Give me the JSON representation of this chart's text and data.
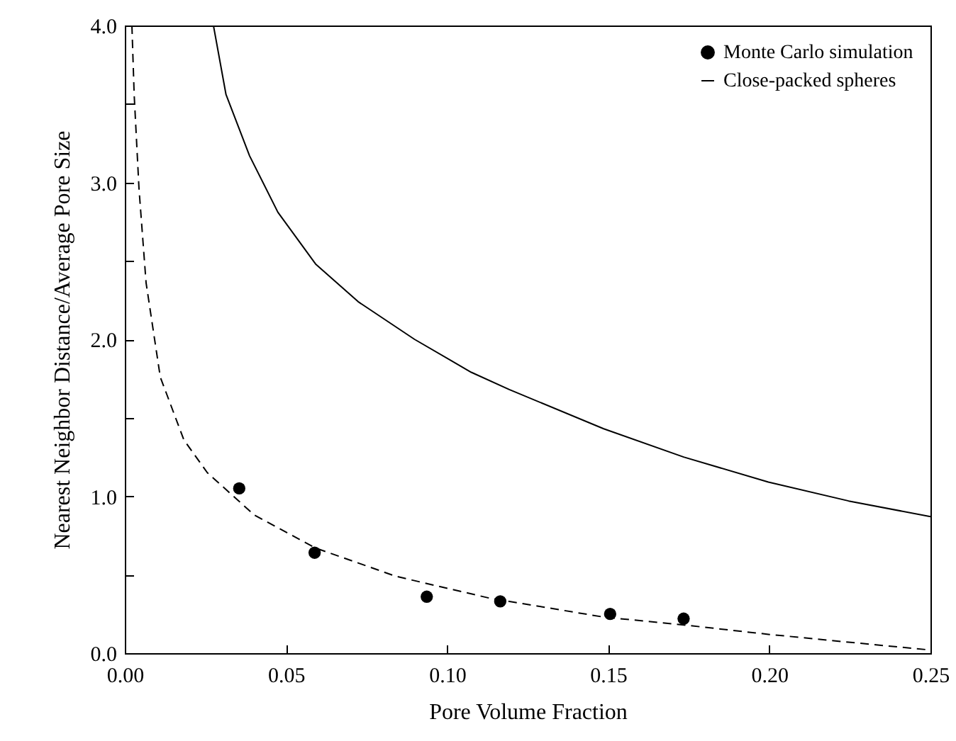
{
  "chart_data": {
    "type": "scatter",
    "xlabel": "Pore Volume Fraction",
    "ylabel": "Nearest Neighbor Distance/Average Pore Size",
    "xlim": [
      0,
      0.25
    ],
    "ylim": [
      0,
      4
    ],
    "xticks": [
      {
        "value": 0,
        "label": "0.00"
      },
      {
        "value": 0.05,
        "label": "0.05"
      },
      {
        "value": 0.1,
        "label": "0.10"
      },
      {
        "value": 0.15,
        "label": "0.15"
      },
      {
        "value": 0.2,
        "label": "0.20"
      },
      {
        "value": 0.25,
        "label": "0.25"
      }
    ],
    "yticks": [
      {
        "value": 0,
        "label": "0.0"
      },
      {
        "value": 0.5,
        "label": null
      },
      {
        "value": 1,
        "label": "1.0"
      },
      {
        "value": 1.5,
        "label": null
      },
      {
        "value": 2,
        "label": "2.0"
      },
      {
        "value": 2.5,
        "label": null
      },
      {
        "value": 3,
        "label": "3.0"
      },
      {
        "value": 3.5,
        "label": null
      },
      {
        "value": 4,
        "label": "4.0"
      }
    ],
    "legend": "top right",
    "grid": false,
    "series": [
      {
        "name": "Monte Carlo simulation",
        "marker": "circle",
        "color": "#000000",
        "x": [
          0.0355,
          0.0589,
          0.0937,
          0.1165,
          0.1506,
          0.1734
        ],
        "values": [
          1.05,
          0.64,
          0.36,
          0.33,
          0.25,
          0.22
        ]
      },
      {
        "name": "Close-packed spheres",
        "type": "line",
        "line_style": "solid",
        "color": "#000000",
        "x": [
          0.0275,
          0.0314,
          0.0387,
          0.0475,
          0.0592,
          0.0724,
          0.0899,
          0.1075,
          0.1193,
          0.1486,
          0.1734,
          0.1997,
          0.2246,
          0.25
        ],
        "values": [
          4.0,
          3.56,
          3.17,
          2.81,
          2.48,
          2.24,
          2.0,
          1.79,
          1.68,
          1.43,
          1.25,
          1.09,
          0.97,
          0.87
        ]
      },
      {
        "type": "line",
        "line_style": "dashed",
        "color": "#000000",
        "x": [
          0.0022,
          0.0029,
          0.0044,
          0.0066,
          0.011,
          0.0183,
          0.0256,
          0.0402,
          0.0592,
          0.0841,
          0.1133,
          0.128,
          0.1486,
          0.1734,
          0.1997,
          0.2246,
          0.25
        ],
        "values": [
          4.0,
          3.56,
          2.96,
          2.36,
          1.76,
          1.36,
          1.15,
          0.88,
          0.67,
          0.49,
          0.35,
          0.3,
          0.23,
          0.18,
          0.12,
          0.07,
          0.02
        ]
      }
    ]
  }
}
